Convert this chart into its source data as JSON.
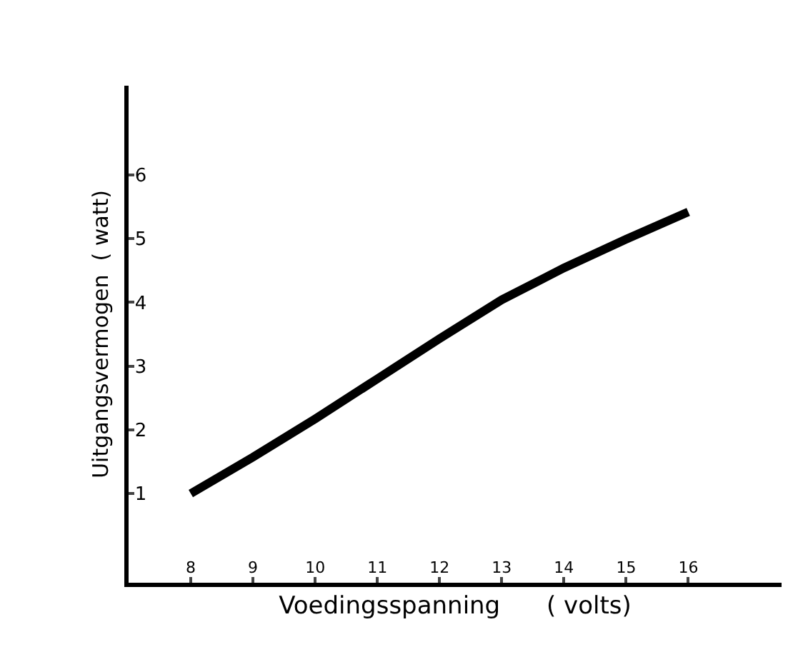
{
  "chart_data": {
    "type": "line",
    "xlabel": "Voedingsspanning      ( volts)",
    "ylabel": "Uitgangsvermogen  ( watt)",
    "x": [
      8,
      9,
      10,
      11,
      12,
      13,
      14,
      15,
      16
    ],
    "series": [
      {
        "color": "#000000",
        "values": [
          1.0,
          1.57,
          2.17,
          2.8,
          3.43,
          4.04,
          4.54,
          4.99,
          5.42
        ]
      }
    ],
    "xlim": [
      7,
      17.5
    ],
    "ylim": [
      -0.4,
      7.4
    ],
    "xticks": [
      8,
      9,
      10,
      11,
      12,
      13,
      14,
      15,
      16
    ],
    "yticks": [
      1,
      2,
      3,
      4,
      5,
      6
    ],
    "marker": "none",
    "line_style": "solid"
  }
}
